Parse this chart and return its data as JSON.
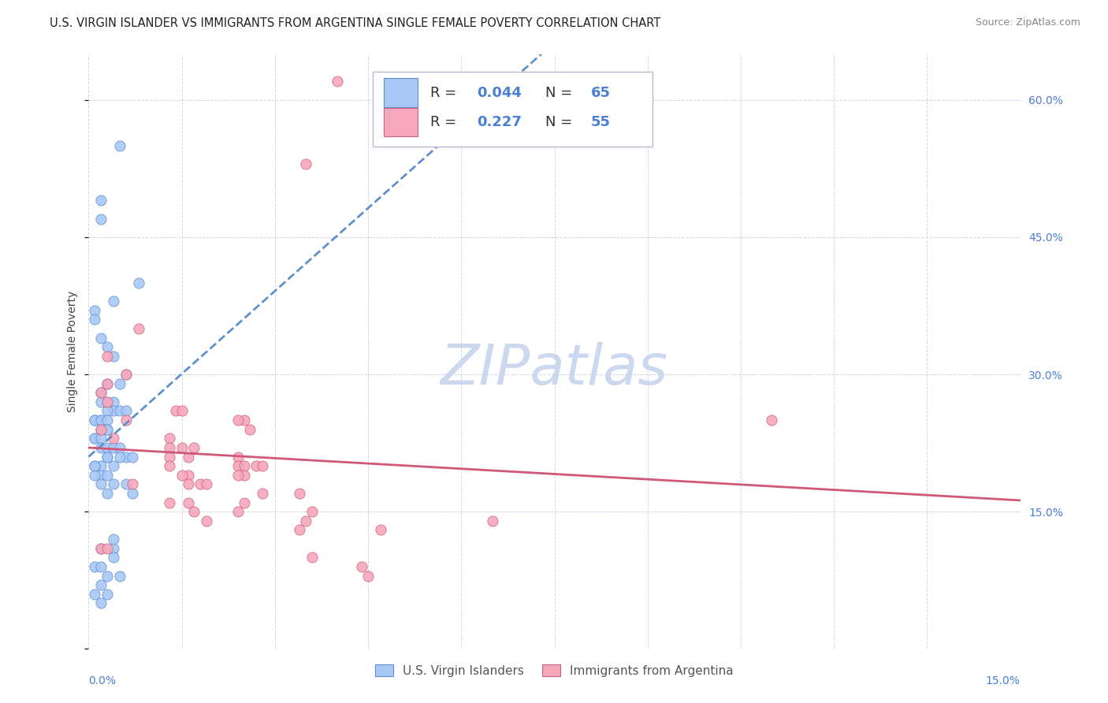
{
  "title": "U.S. VIRGIN ISLANDER VS IMMIGRANTS FROM ARGENTINA SINGLE FEMALE POVERTY CORRELATION CHART",
  "source": "Source: ZipAtlas.com",
  "ylabel": "Single Female Poverty",
  "ylabel_right_ticks": [
    0.0,
    0.15,
    0.3,
    0.45,
    0.6
  ],
  "ylabel_right_labels": [
    "",
    "15.0%",
    "30.0%",
    "45.0%",
    "60.0%"
  ],
  "xmin": 0.0,
  "xmax": 0.15,
  "ymin": 0.0,
  "ymax": 0.65,
  "watermark": "ZIPatlas",
  "blue_scatter_x": [
    0.005,
    0.002,
    0.002,
    0.001,
    0.001,
    0.002,
    0.003,
    0.004,
    0.008,
    0.006,
    0.005,
    0.003,
    0.002,
    0.002,
    0.003,
    0.004,
    0.004,
    0.005,
    0.006,
    0.003,
    0.002,
    0.001,
    0.001,
    0.002,
    0.003,
    0.004,
    0.002,
    0.003,
    0.003,
    0.001,
    0.001,
    0.002,
    0.002,
    0.003,
    0.004,
    0.005,
    0.003,
    0.006,
    0.003,
    0.007,
    0.005,
    0.004,
    0.002,
    0.001,
    0.002,
    0.003,
    0.001,
    0.002,
    0.004,
    0.006,
    0.003,
    0.007,
    0.004,
    0.002,
    0.004,
    0.001,
    0.002,
    0.004,
    0.003,
    0.005,
    0.002,
    0.001,
    0.003,
    0.002,
    0.001
  ],
  "blue_scatter_y": [
    0.55,
    0.49,
    0.47,
    0.37,
    0.36,
    0.34,
    0.33,
    0.32,
    0.4,
    0.3,
    0.29,
    0.29,
    0.28,
    0.27,
    0.27,
    0.27,
    0.26,
    0.26,
    0.26,
    0.26,
    0.25,
    0.25,
    0.25,
    0.25,
    0.25,
    0.38,
    0.24,
    0.24,
    0.24,
    0.23,
    0.23,
    0.23,
    0.22,
    0.22,
    0.22,
    0.22,
    0.21,
    0.21,
    0.21,
    0.21,
    0.21,
    0.2,
    0.2,
    0.2,
    0.19,
    0.19,
    0.19,
    0.18,
    0.18,
    0.18,
    0.17,
    0.17,
    0.11,
    0.11,
    0.12,
    0.09,
    0.09,
    0.1,
    0.08,
    0.08,
    0.07,
    0.06,
    0.06,
    0.05,
    0.2
  ],
  "pink_scatter_x": [
    0.04,
    0.035,
    0.008,
    0.003,
    0.065,
    0.006,
    0.025,
    0.014,
    0.003,
    0.002,
    0.024,
    0.015,
    0.006,
    0.013,
    0.004,
    0.026,
    0.015,
    0.017,
    0.013,
    0.024,
    0.013,
    0.016,
    0.027,
    0.028,
    0.024,
    0.025,
    0.025,
    0.016,
    0.024,
    0.013,
    0.007,
    0.016,
    0.018,
    0.015,
    0.019,
    0.034,
    0.028,
    0.025,
    0.016,
    0.013,
    0.024,
    0.017,
    0.036,
    0.019,
    0.035,
    0.047,
    0.034,
    0.11,
    0.002,
    0.003,
    0.036,
    0.044,
    0.045,
    0.003,
    0.002
  ],
  "pink_scatter_y": [
    0.62,
    0.53,
    0.35,
    0.32,
    0.14,
    0.3,
    0.25,
    0.26,
    0.27,
    0.24,
    0.25,
    0.26,
    0.25,
    0.23,
    0.23,
    0.24,
    0.22,
    0.22,
    0.22,
    0.21,
    0.21,
    0.21,
    0.2,
    0.2,
    0.2,
    0.2,
    0.19,
    0.19,
    0.19,
    0.2,
    0.18,
    0.18,
    0.18,
    0.19,
    0.18,
    0.17,
    0.17,
    0.16,
    0.16,
    0.16,
    0.15,
    0.15,
    0.15,
    0.14,
    0.14,
    0.13,
    0.13,
    0.25,
    0.11,
    0.11,
    0.1,
    0.09,
    0.08,
    0.29,
    0.28
  ],
  "blue_R": 0.044,
  "blue_N": 65,
  "pink_R": 0.227,
  "pink_N": 55,
  "blue_color": "#a8c8f5",
  "blue_edge_color": "#6090d0",
  "pink_color": "#f5a8bc",
  "pink_edge_color": "#d06080",
  "blue_line_color": "#6090cc",
  "pink_line_color": "#d05878",
  "title_fontsize": 10.5,
  "source_fontsize": 9,
  "axis_label_fontsize": 10,
  "legend_fontsize": 13,
  "watermark_color": "#ccd8ee",
  "watermark_fontsize": 52,
  "grid_color": "#c8d4e8",
  "right_axis_color": "#4a7fd4"
}
